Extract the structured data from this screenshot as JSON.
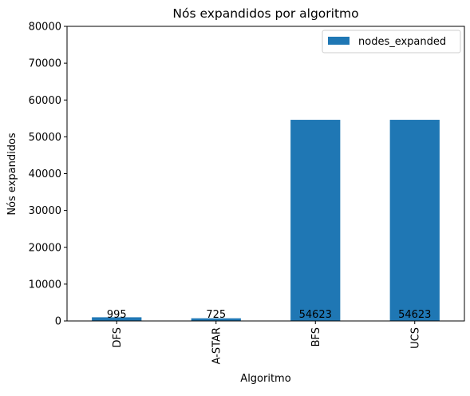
{
  "chart_data": {
    "type": "bar",
    "title": "Nós expandidos por algoritmo",
    "xlabel": "Algoritmo",
    "ylabel": "Nós expandidos",
    "categories": [
      "DFS",
      "A-STAR",
      "BFS",
      "UCS"
    ],
    "series": [
      {
        "name": "nodes_expanded",
        "values": [
          995,
          725,
          54623,
          54623
        ],
        "color": "#1f77b4"
      }
    ],
    "data_labels": [
      "995",
      "725",
      "54623",
      "54623"
    ],
    "ylim": [
      0,
      80000
    ],
    "yticks": [
      0,
      10000,
      20000,
      30000,
      40000,
      50000,
      60000,
      70000,
      80000
    ],
    "grid": false,
    "legend_position": "top-right"
  }
}
